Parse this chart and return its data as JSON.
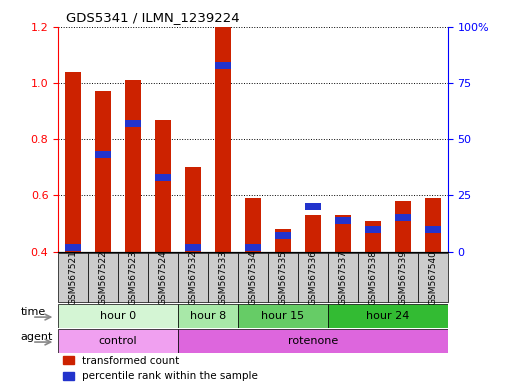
{
  "title": "GDS5341 / ILMN_1239224",
  "samples": [
    "GSM567521",
    "GSM567522",
    "GSM567523",
    "GSM567524",
    "GSM567532",
    "GSM567533",
    "GSM567534",
    "GSM567535",
    "GSM567536",
    "GSM567537",
    "GSM567538",
    "GSM567539",
    "GSM567540"
  ],
  "red_values": [
    1.04,
    0.97,
    1.01,
    0.87,
    0.7,
    1.2,
    0.59,
    0.48,
    0.53,
    0.53,
    0.51,
    0.58,
    0.59
  ],
  "blue_percentiles": [
    2,
    43,
    57,
    33,
    2,
    83,
    2,
    7,
    20,
    14,
    10,
    15,
    10
  ],
  "ylim_left": [
    0.4,
    1.2
  ],
  "ylim_right": [
    0.0,
    100.0
  ],
  "yticks_left": [
    0.4,
    0.6,
    0.8,
    1.0,
    1.2
  ],
  "yticks_right": [
    0,
    25,
    50,
    75,
    100
  ],
  "ytick_labels_right": [
    "0",
    "25",
    "50",
    "75",
    "100%"
  ],
  "time_groups": [
    {
      "label": "hour 0",
      "start": 0,
      "end": 4,
      "color": "#d4f5d4"
    },
    {
      "label": "hour 8",
      "start": 4,
      "end": 6,
      "color": "#a8e8a8"
    },
    {
      "label": "hour 15",
      "start": 6,
      "end": 9,
      "color": "#66cc66"
    },
    {
      "label": "hour 24",
      "start": 9,
      "end": 13,
      "color": "#33bb33"
    }
  ],
  "agent_groups": [
    {
      "label": "control",
      "start": 0,
      "end": 4,
      "color": "#f0a0f0"
    },
    {
      "label": "rotenone",
      "start": 4,
      "end": 13,
      "color": "#dd66dd"
    }
  ],
  "bar_bottom": 0.4,
  "red_color": "#cc2200",
  "blue_color": "#2233cc",
  "bar_width": 0.55,
  "sample_box_color": "#cccccc",
  "tick_label_fontsize": 6.5,
  "grid_linestyle": "dotted",
  "grid_color": "black",
  "grid_linewidth": 0.7
}
